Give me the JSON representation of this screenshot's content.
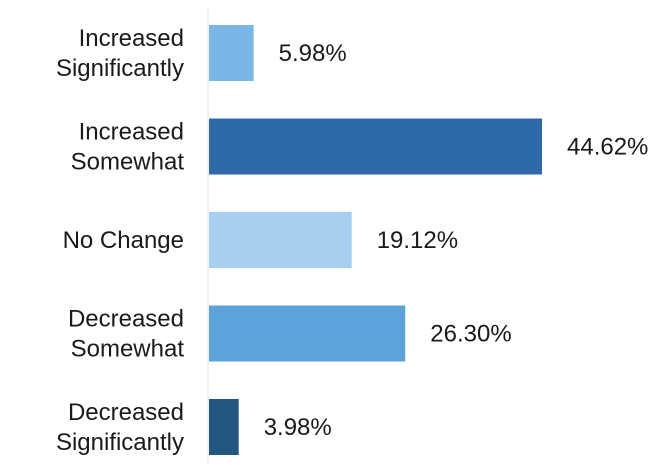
{
  "chart_data": {
    "type": "bar",
    "orientation": "horizontal",
    "categories": [
      [
        "Increased",
        "Significantly"
      ],
      [
        "Increased",
        "Somewhat"
      ],
      [
        "No Change"
      ],
      [
        "Decreased",
        "Somewhat"
      ],
      [
        "Decreased",
        "Significantly"
      ]
    ],
    "values": [
      5.98,
      44.62,
      19.12,
      26.3,
      3.98
    ],
    "value_labels": [
      "5.98%",
      "44.62%",
      "19.12%",
      "26.30%",
      "3.98%"
    ],
    "colors": [
      "#7ab6e6",
      "#2e6aa8",
      "#a8cfee",
      "#5ba3d8",
      "#24577f"
    ],
    "title": "",
    "xlabel": "",
    "ylabel": "",
    "xlim": [
      0,
      44.62
    ],
    "grid": false,
    "legend": "none"
  }
}
